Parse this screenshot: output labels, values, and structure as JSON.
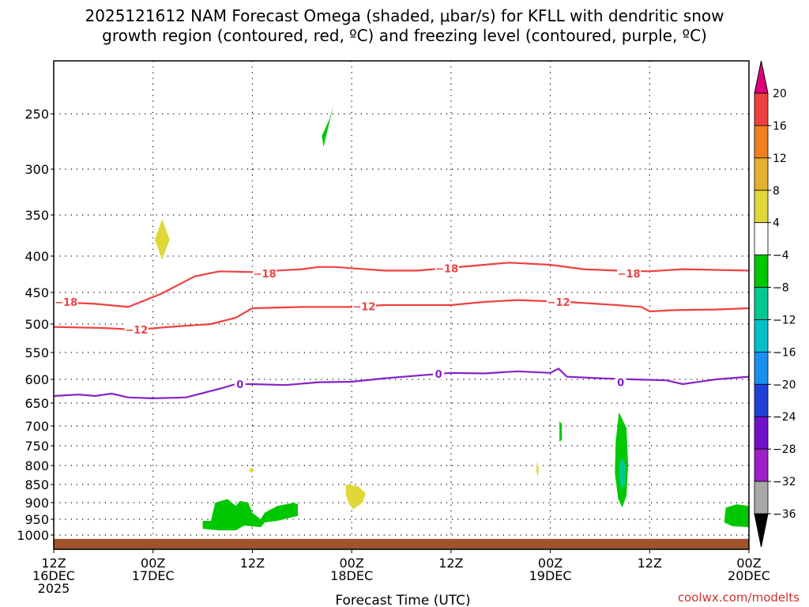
{
  "chart_data": {
    "type": "time-height-contour",
    "title_lines": [
      "2025121612 NAM Forecast Omega (shaded, μbar/s) for KFLL with dendritic snow",
      "growth region (contoured, red, ºC) and freezing level (contoured, purple, ºC)"
    ],
    "xlabel": "Forecast Time (UTC)",
    "credit": "coolwx.com/modelts",
    "xlim_hours": [
      0,
      84
    ],
    "ylim_hpa": [
      1050,
      200
    ],
    "x_ticks": [
      {
        "hour": 0,
        "line1": "12Z",
        "line2": "16DEC",
        "line3": "2025"
      },
      {
        "hour": 12,
        "line1": "00Z",
        "line2": "17DEC",
        "line3": ""
      },
      {
        "hour": 24,
        "line1": "12Z",
        "line2": "",
        "line3": ""
      },
      {
        "hour": 36,
        "line1": "00Z",
        "line2": "18DEC",
        "line3": ""
      },
      {
        "hour": 48,
        "line1": "12Z",
        "line2": "",
        "line3": ""
      },
      {
        "hour": 60,
        "line1": "00Z",
        "line2": "19DEC",
        "line3": ""
      },
      {
        "hour": 72,
        "line1": "12Z",
        "line2": "",
        "line3": ""
      },
      {
        "hour": 84,
        "line1": "00Z",
        "line2": "20DEC",
        "line3": ""
      }
    ],
    "y_ticks": [
      250,
      300,
      350,
      400,
      450,
      500,
      550,
      600,
      650,
      700,
      750,
      800,
      850,
      900,
      950,
      1000
    ],
    "surface_pressure_hpa": 1012,
    "surface_color": "#a0522d",
    "colorbar": {
      "labels": [
        "20",
        "16",
        "12",
        "8",
        "4",
        "−4",
        "−8",
        "−12",
        "−16",
        "−20",
        "−24",
        "−28",
        "−32",
        "−36"
      ],
      "colors": [
        "#e0007a",
        "#f04040",
        "#f08020",
        "#e8b030",
        "#e0d838",
        "#ffffff",
        "#00c800",
        "#00c890",
        "#00c0c8",
        "#1890f0",
        "#2040d8",
        "#7010c8",
        "#a020c8",
        "#a8a8a8",
        "#000000"
      ]
    },
    "contours": [
      {
        "name": "minus18",
        "label": "−18",
        "color": "#f04040",
        "points": [
          [
            0,
            465
          ],
          [
            5,
            468
          ],
          [
            9,
            473
          ],
          [
            13,
            452
          ],
          [
            17,
            428
          ],
          [
            20,
            421
          ],
          [
            24,
            422
          ],
          [
            30,
            418
          ],
          [
            32,
            415
          ],
          [
            34,
            415
          ],
          [
            40,
            420
          ],
          [
            44,
            420
          ],
          [
            50,
            414
          ],
          [
            55,
            409
          ],
          [
            60,
            412
          ],
          [
            64,
            418
          ],
          [
            68,
            420
          ],
          [
            72,
            421
          ],
          [
            76,
            418
          ],
          [
            80,
            419
          ],
          [
            84,
            420
          ]
        ],
        "label_at": [
          [
            1.5,
            465
          ],
          [
            25.5,
            424
          ],
          [
            47.5,
            417
          ],
          [
            69.5,
            424
          ]
        ]
      },
      {
        "name": "minus12",
        "label": "−12",
        "color": "#f04040",
        "points": [
          [
            0,
            505
          ],
          [
            6,
            507
          ],
          [
            10,
            510
          ],
          [
            14,
            505
          ],
          [
            19,
            500
          ],
          [
            22,
            490
          ],
          [
            24,
            475
          ],
          [
            30,
            473
          ],
          [
            36,
            473
          ],
          [
            40,
            470
          ],
          [
            48,
            470
          ],
          [
            52,
            465
          ],
          [
            56,
            462
          ],
          [
            62,
            465
          ],
          [
            68,
            470
          ],
          [
            71,
            473
          ],
          [
            72,
            480
          ],
          [
            75,
            478
          ],
          [
            80,
            477
          ],
          [
            84,
            475
          ]
        ],
        "label_at": [
          [
            10,
            510
          ],
          [
            37.5,
            472
          ],
          [
            61,
            465
          ]
        ]
      },
      {
        "name": "zero",
        "label": "0",
        "color": "#8820c8",
        "points": [
          [
            0,
            635
          ],
          [
            3,
            632
          ],
          [
            5,
            635
          ],
          [
            7,
            630
          ],
          [
            9,
            638
          ],
          [
            12,
            640
          ],
          [
            16,
            638
          ],
          [
            20,
            620
          ],
          [
            22,
            610
          ],
          [
            24,
            610
          ],
          [
            28,
            612
          ],
          [
            32,
            606
          ],
          [
            36,
            605
          ],
          [
            40,
            598
          ],
          [
            44,
            593
          ],
          [
            48,
            588
          ],
          [
            52,
            589
          ],
          [
            56,
            585
          ],
          [
            60,
            588
          ],
          [
            61,
            580
          ],
          [
            62,
            595
          ],
          [
            66,
            598
          ],
          [
            70,
            600
          ],
          [
            74,
            602
          ],
          [
            76,
            610
          ],
          [
            80,
            600
          ],
          [
            84,
            595
          ]
        ],
        "label_at": [
          [
            22.5,
            610
          ],
          [
            46.5,
            590
          ],
          [
            68.5,
            606
          ]
        ]
      }
    ],
    "omega_features": [
      {
        "name": "green-250",
        "value_range": "-4 to -8",
        "color": "#00c800",
        "points": [
          [
            32.6,
            280
          ],
          [
            33.8,
            240
          ],
          [
            33.3,
            255
          ],
          [
            32.4,
            270
          ]
        ]
      },
      {
        "name": "yellow-375",
        "value_range": "4 to 8",
        "color": "#e0d838",
        "points": [
          [
            13.1,
            355
          ],
          [
            14.0,
            380
          ],
          [
            13.1,
            405
          ],
          [
            12.2,
            380
          ]
        ]
      },
      {
        "name": "yellow-810",
        "value_range": "4 to 8",
        "color": "#e0d838",
        "points": [
          [
            23.9,
            805
          ],
          [
            24.2,
            812
          ],
          [
            23.9,
            820
          ],
          [
            23.6,
            812
          ]
        ]
      },
      {
        "name": "yellow-880",
        "value_range": "4 to 8",
        "color": "#e0d838",
        "points": [
          [
            35.3,
            850
          ],
          [
            36.8,
            855
          ],
          [
            37.7,
            875
          ],
          [
            37.3,
            900
          ],
          [
            36.2,
            920
          ],
          [
            35.7,
            905
          ],
          [
            35.3,
            880
          ]
        ]
      },
      {
        "name": "yellow-820",
        "value_range": "4 to 8",
        "color": "#e0d838",
        "points": [
          [
            58.4,
            790
          ],
          [
            58.6,
            805
          ],
          [
            58.5,
            830
          ],
          [
            58.3,
            815
          ]
        ]
      },
      {
        "name": "green-930",
        "value_range": "-4 to -8",
        "color": "#00c800",
        "points": [
          [
            18,
            955
          ],
          [
            19,
            955
          ],
          [
            19.5,
            900
          ],
          [
            21,
            890
          ],
          [
            22,
            910
          ],
          [
            22.5,
            895
          ],
          [
            23.5,
            900
          ],
          [
            24,
            930
          ],
          [
            25,
            950
          ],
          [
            25.5,
            930
          ],
          [
            27,
            910
          ],
          [
            29,
            900
          ],
          [
            29.5,
            905
          ],
          [
            29.5,
            940
          ],
          [
            27,
            955
          ],
          [
            25.5,
            960
          ],
          [
            25,
            975
          ],
          [
            23,
            970
          ],
          [
            22,
            985
          ],
          [
            20,
            985
          ],
          [
            18,
            980
          ]
        ]
      },
      {
        "name": "green-720",
        "value_range": "-4 to -8",
        "color": "#00c800",
        "points": [
          [
            61.1,
            690
          ],
          [
            61.4,
            695
          ],
          [
            61.4,
            735
          ],
          [
            61.1,
            740
          ]
        ]
      },
      {
        "name": "green-800",
        "value_range": "-4 to -8",
        "color": "#00c800",
        "points": [
          [
            68.3,
            670
          ],
          [
            69.2,
            705
          ],
          [
            69.4,
            800
          ],
          [
            69.2,
            880
          ],
          [
            68.7,
            915
          ],
          [
            68.2,
            890
          ],
          [
            67.8,
            820
          ],
          [
            67.9,
            740
          ]
        ]
      },
      {
        "name": "cyan-810",
        "value_range": "-8 to -12",
        "color": "#00c890",
        "points": [
          [
            68.7,
            780
          ],
          [
            69.1,
            800
          ],
          [
            69.0,
            850
          ],
          [
            68.6,
            865
          ],
          [
            68.3,
            830
          ],
          [
            68.4,
            790
          ]
        ]
      },
      {
        "name": "green-945",
        "value_range": "-4 to -8",
        "color": "#00c800",
        "points": [
          [
            81.2,
            915
          ],
          [
            82.5,
            905
          ],
          [
            84,
            910
          ],
          [
            84,
            975
          ],
          [
            82,
            972
          ],
          [
            81,
            960
          ]
        ]
      }
    ]
  }
}
